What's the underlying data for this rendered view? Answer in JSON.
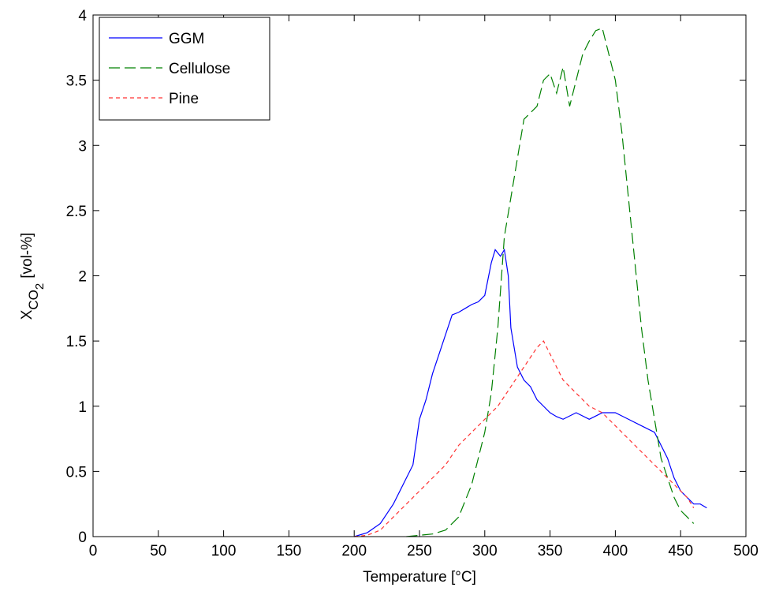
{
  "chart_data": {
    "type": "line",
    "xlabel": "Temperature [°C]",
    "ylabel": {
      "base": "X",
      "sub": "CO",
      "subsub": "2",
      "unit": "[vol-%]"
    },
    "xlim": [
      0,
      500
    ],
    "ylim": [
      0,
      4
    ],
    "xticks": [
      0,
      50,
      100,
      150,
      200,
      250,
      300,
      350,
      400,
      450,
      500
    ],
    "yticks": [
      0,
      0.5,
      1,
      1.5,
      2,
      2.5,
      3,
      3.5,
      4
    ],
    "legend": "upper left",
    "series": [
      {
        "name": "GGM",
        "color": "#0000ff",
        "dash": "solid",
        "x": [
          200,
          210,
          220,
          230,
          240,
          245,
          250,
          255,
          260,
          265,
          270,
          275,
          280,
          285,
          290,
          295,
          300,
          305,
          308,
          312,
          315,
          318,
          320,
          325,
          330,
          335,
          340,
          345,
          350,
          355,
          360,
          370,
          380,
          390,
          400,
          410,
          420,
          430,
          440,
          445,
          450,
          455,
          460,
          465,
          470
        ],
        "values": [
          0,
          0.03,
          0.1,
          0.25,
          0.45,
          0.55,
          0.9,
          1.05,
          1.25,
          1.4,
          1.55,
          1.7,
          1.72,
          1.75,
          1.78,
          1.8,
          1.85,
          2.1,
          2.2,
          2.15,
          2.2,
          2.0,
          1.6,
          1.3,
          1.2,
          1.15,
          1.05,
          1.0,
          0.95,
          0.92,
          0.9,
          0.95,
          0.9,
          0.95,
          0.95,
          0.9,
          0.85,
          0.8,
          0.6,
          0.45,
          0.35,
          0.3,
          0.25,
          0.25,
          0.22
        ]
      },
      {
        "name": "Cellulose",
        "color": "#008000",
        "dash": "long",
        "x": [
          240,
          250,
          260,
          270,
          280,
          290,
          295,
          300,
          305,
          310,
          315,
          320,
          325,
          330,
          335,
          340,
          345,
          350,
          355,
          360,
          365,
          370,
          375,
          380,
          385,
          390,
          395,
          400,
          405,
          410,
          415,
          420,
          425,
          430,
          435,
          440,
          445,
          450,
          455,
          460
        ],
        "values": [
          0,
          0.01,
          0.02,
          0.05,
          0.15,
          0.4,
          0.6,
          0.8,
          1.1,
          1.6,
          2.3,
          2.6,
          2.9,
          3.2,
          3.25,
          3.3,
          3.5,
          3.55,
          3.4,
          3.6,
          3.3,
          3.5,
          3.7,
          3.8,
          3.88,
          3.9,
          3.7,
          3.5,
          3.1,
          2.6,
          2.1,
          1.6,
          1.2,
          0.9,
          0.6,
          0.45,
          0.3,
          0.2,
          0.15,
          0.1
        ]
      },
      {
        "name": "Pine",
        "color": "#ff3333",
        "dash": "short",
        "x": [
          200,
          210,
          220,
          230,
          240,
          250,
          260,
          270,
          280,
          290,
          300,
          310,
          320,
          330,
          340,
          345,
          350,
          355,
          360,
          370,
          380,
          390,
          400,
          410,
          420,
          430,
          440,
          450,
          455,
          460
        ],
        "values": [
          0,
          0.01,
          0.05,
          0.15,
          0.25,
          0.35,
          0.45,
          0.55,
          0.7,
          0.8,
          0.9,
          1.0,
          1.15,
          1.3,
          1.45,
          1.5,
          1.4,
          1.3,
          1.2,
          1.1,
          1.0,
          0.95,
          0.85,
          0.75,
          0.65,
          0.55,
          0.45,
          0.35,
          0.3,
          0.22
        ]
      }
    ]
  }
}
